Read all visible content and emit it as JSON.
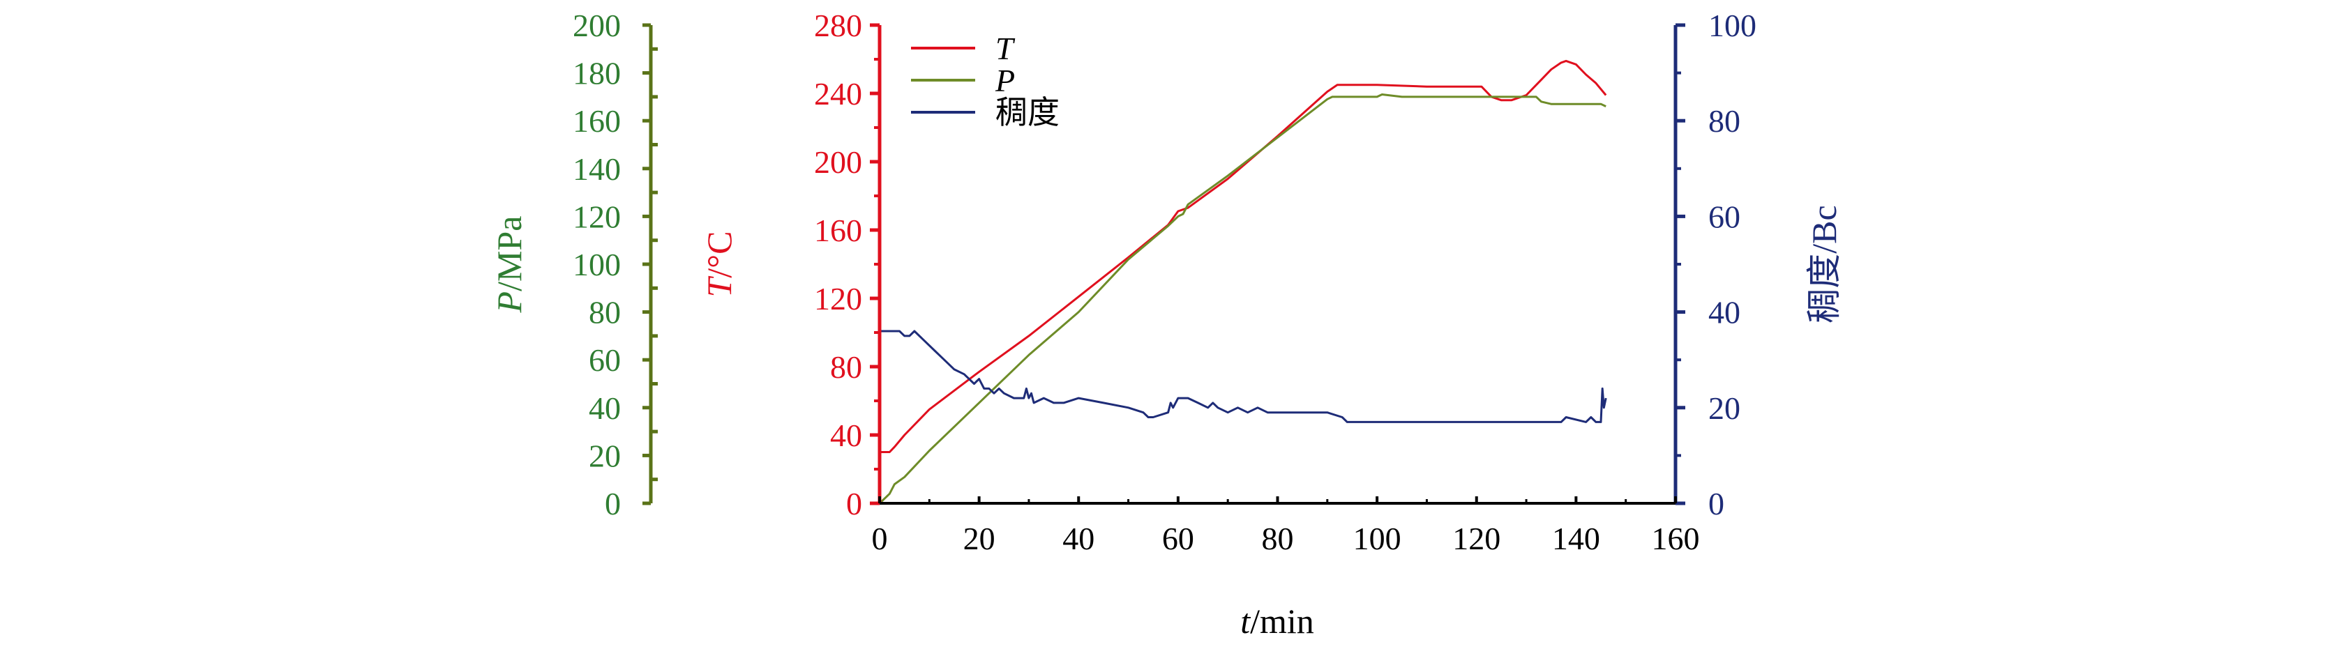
{
  "chart_data": {
    "type": "line",
    "x_axis": {
      "label_italic": "t",
      "label_rest": "/min",
      "min": 0,
      "max": 160,
      "ticks": [
        "0",
        "20",
        "40",
        "60",
        "80",
        "100",
        "120",
        "140",
        "160"
      ]
    },
    "axes": {
      "pressure": {
        "label_italic": "P",
        "label_rest": "/MPa",
        "min": 0,
        "max": 200,
        "ticks": [
          "0",
          "20",
          "40",
          "60",
          "80",
          "100",
          "120",
          "140",
          "160",
          "180",
          "200"
        ],
        "tick_color": "#2f7d32",
        "line_color": "#5a7318"
      },
      "temperature": {
        "label_italic": "T",
        "label_rest": "/°C",
        "min": 0,
        "max": 280,
        "ticks": [
          "0",
          "40",
          "80",
          "120",
          "160",
          "200",
          "240",
          "280"
        ],
        "color": "#e0101e"
      },
      "consistency": {
        "label": "稠度/Bc",
        "min": 0,
        "max": 100,
        "ticks": [
          "0",
          "20",
          "40",
          "60",
          "80",
          "100"
        ],
        "color": "#1e2c78"
      }
    },
    "legend": [
      {
        "label": "T",
        "italic": true,
        "color": "#e0101e"
      },
      {
        "label": "P",
        "italic": true,
        "color": "#6e8c28"
      },
      {
        "label": "稠度",
        "italic": false,
        "color": "#1e2c78"
      }
    ],
    "series": [
      {
        "name": "T",
        "axis": "temperature",
        "color": "#e0101e",
        "x": [
          0,
          2,
          3,
          5,
          10,
          20,
          30,
          40,
          50,
          58,
          60,
          62,
          70,
          80,
          90,
          92,
          95,
          100,
          110,
          120,
          121,
          123,
          125,
          127,
          130,
          133,
          135,
          137,
          138,
          140,
          142,
          144,
          146
        ],
        "y": [
          30,
          30,
          33,
          40,
          55,
          77,
          98,
          121,
          144,
          163,
          171,
          173,
          190,
          215,
          241,
          245,
          245,
          245,
          244,
          244,
          244,
          238,
          236,
          236,
          239,
          248,
          254,
          258,
          259,
          257,
          251,
          246,
          239
        ]
      },
      {
        "name": "P",
        "axis": "pressure",
        "color": "#6e8c28",
        "x": [
          0,
          2,
          3,
          5,
          10,
          20,
          30,
          40,
          50,
          58,
          60,
          61,
          62,
          70,
          80,
          90,
          91,
          95,
          100,
          101,
          105,
          110,
          120,
          125,
          130,
          132,
          133,
          135,
          140,
          145,
          146
        ],
        "y": [
          0,
          4,
          8,
          11,
          22,
          42,
          62,
          80,
          102,
          116,
          120,
          121,
          125,
          137,
          153,
          169,
          170,
          170,
          170,
          171,
          170,
          170,
          170,
          170,
          170,
          170,
          168,
          167,
          167,
          167,
          166
        ]
      },
      {
        "name": "稠度",
        "axis": "consistency",
        "color": "#1e2c78",
        "x": [
          0,
          3,
          4,
          5,
          6,
          7,
          9,
          11,
          13,
          15,
          17,
          19,
          20,
          21,
          22,
          23,
          24,
          25,
          27,
          29,
          29.5,
          30,
          30.5,
          31,
          33,
          35,
          37,
          40,
          45,
          50,
          53,
          54,
          55,
          58,
          58.5,
          59,
          60,
          62,
          64,
          66,
          67,
          68,
          70,
          72,
          74,
          76,
          78,
          80,
          85,
          90,
          93,
          94,
          96,
          100,
          110,
          120,
          130,
          135,
          137,
          138,
          142,
          143,
          144,
          145,
          145.3,
          145.6,
          146
        ],
        "y": [
          36,
          36,
          36,
          35,
          35,
          36,
          34,
          32,
          30,
          28,
          27,
          25,
          26,
          24,
          24,
          23,
          24,
          23,
          22,
          22,
          24,
          22,
          23,
          21,
          22,
          21,
          21,
          22,
          21,
          20,
          19,
          18,
          18,
          19,
          21,
          20,
          22,
          22,
          21,
          20,
          21,
          20,
          19,
          20,
          19,
          20,
          19,
          19,
          19,
          19,
          18,
          17,
          17,
          17,
          17,
          17,
          17,
          17,
          17,
          18,
          17,
          18,
          17,
          17,
          24,
          20,
          22
        ]
      }
    ]
  }
}
